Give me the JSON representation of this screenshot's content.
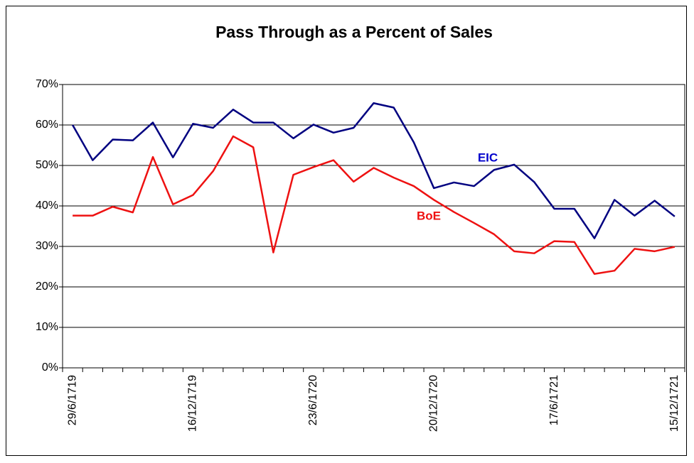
{
  "chart_data": {
    "type": "line",
    "title": "Pass Through as a Percent of Sales",
    "categories": [
      "29/6/1719",
      null,
      null,
      null,
      null,
      null,
      "16/12/1719",
      null,
      null,
      null,
      null,
      null,
      "23/6/1720",
      null,
      null,
      null,
      null,
      null,
      "20/12/1720",
      null,
      null,
      null,
      null,
      null,
      "17/6/1721",
      null,
      null,
      null,
      null,
      null,
      "15/12/1721"
    ],
    "series": [
      {
        "name": "EIC",
        "color": "#000080",
        "label_color": "#0000cc",
        "values": [
          60,
          51.3,
          56.4,
          56.2,
          60.6,
          52,
          60.3,
          59.3,
          63.8,
          60.6,
          60.6,
          56.7,
          60.1,
          58.1,
          59.3,
          65.4,
          64.3,
          55.7,
          44.4,
          45.8,
          44.9,
          48.9,
          50.2,
          45.9,
          39.3,
          39.3,
          32,
          41.5,
          37.6,
          41.3,
          37.4
        ]
      },
      {
        "name": "BoE",
        "color": "#ee1111",
        "label_color": "#ee1111",
        "values": [
          37.6,
          37.6,
          39.8,
          38.4,
          52.1,
          40.4,
          42.7,
          48.6,
          57.2,
          54.5,
          28.5,
          47.7,
          49.6,
          51.3,
          46,
          49.4,
          47,
          44.9,
          41.5,
          38.5,
          35.8,
          33,
          28.8,
          28.3,
          31.3,
          31.1,
          23.2,
          24,
          29.4,
          28.8,
          29.9
        ]
      }
    ],
    "ylim": [
      0,
      70
    ],
    "yticks": [
      {
        "value": 0,
        "label": "0%"
      },
      {
        "value": 10,
        "label": "10%"
      },
      {
        "value": 20,
        "label": "20%"
      },
      {
        "value": 30,
        "label": "30%"
      },
      {
        "value": 40,
        "label": "40%"
      },
      {
        "value": 50,
        "label": "50%"
      },
      {
        "value": 60,
        "label": "60%"
      },
      {
        "value": 70,
        "label": "70%"
      }
    ],
    "grid": true
  }
}
